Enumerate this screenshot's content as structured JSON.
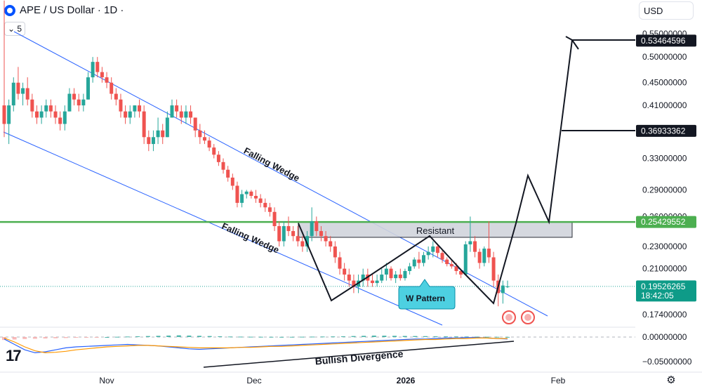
{
  "header": {
    "title": "APE / US Dollar · 1D ·",
    "currency": "USD",
    "indicator_toggle": "5"
  },
  "colors": {
    "up": "#26a69a",
    "down": "#ef5350",
    "channel": "#2962ff",
    "resistance_line": "#4caf50",
    "resistance_zone": "#d1d4dc",
    "price_tag": "#0e9b88",
    "macd": "#2962ff",
    "signal": "#ff9800"
  },
  "chart_data": {
    "type": "candlestick",
    "y_scale": "log",
    "y_ticks": [
      "0.55000000",
      "0.50000000",
      "0.45000000",
      "0.41000000",
      "0.33000000",
      "0.29000000",
      "0.26000000",
      "0.23000000",
      "0.21000000",
      "0.17400000"
    ],
    "x_ticks": [
      "Nov",
      "Dec",
      "2026",
      "Feb"
    ],
    "candles_ohlc": [
      [
        0.41,
        0.63,
        0.36,
        0.38
      ],
      [
        0.38,
        0.42,
        0.35,
        0.41
      ],
      [
        0.41,
        0.46,
        0.4,
        0.45
      ],
      [
        0.45,
        0.48,
        0.42,
        0.43
      ],
      [
        0.43,
        0.45,
        0.41,
        0.44
      ],
      [
        0.44,
        0.46,
        0.41,
        0.42
      ],
      [
        0.42,
        0.43,
        0.39,
        0.4
      ],
      [
        0.4,
        0.41,
        0.38,
        0.39
      ],
      [
        0.39,
        0.41,
        0.38,
        0.4
      ],
      [
        0.4,
        0.42,
        0.39,
        0.41
      ],
      [
        0.41,
        0.42,
        0.39,
        0.4
      ],
      [
        0.4,
        0.41,
        0.38,
        0.39
      ],
      [
        0.39,
        0.4,
        0.37,
        0.38
      ],
      [
        0.38,
        0.41,
        0.37,
        0.4
      ],
      [
        0.4,
        0.44,
        0.4,
        0.43
      ],
      [
        0.43,
        0.44,
        0.41,
        0.42
      ],
      [
        0.42,
        0.43,
        0.4,
        0.41
      ],
      [
        0.41,
        0.43,
        0.4,
        0.42
      ],
      [
        0.42,
        0.47,
        0.42,
        0.46
      ],
      [
        0.46,
        0.5,
        0.45,
        0.49
      ],
      [
        0.49,
        0.5,
        0.46,
        0.47
      ],
      [
        0.47,
        0.48,
        0.45,
        0.46
      ],
      [
        0.46,
        0.47,
        0.44,
        0.45
      ],
      [
        0.45,
        0.46,
        0.42,
        0.43
      ],
      [
        0.43,
        0.44,
        0.41,
        0.42
      ],
      [
        0.42,
        0.43,
        0.39,
        0.4
      ],
      [
        0.4,
        0.41,
        0.38,
        0.39
      ],
      [
        0.39,
        0.41,
        0.38,
        0.4
      ],
      [
        0.4,
        0.41,
        0.39,
        0.41
      ],
      [
        0.41,
        0.42,
        0.39,
        0.4
      ],
      [
        0.4,
        0.41,
        0.35,
        0.36
      ],
      [
        0.36,
        0.37,
        0.34,
        0.35
      ],
      [
        0.35,
        0.37,
        0.34,
        0.36
      ],
      [
        0.36,
        0.39,
        0.35,
        0.37
      ],
      [
        0.37,
        0.38,
        0.35,
        0.36
      ],
      [
        0.36,
        0.4,
        0.36,
        0.39
      ],
      [
        0.39,
        0.42,
        0.39,
        0.41
      ],
      [
        0.41,
        0.42,
        0.39,
        0.4
      ],
      [
        0.4,
        0.41,
        0.38,
        0.39
      ],
      [
        0.39,
        0.41,
        0.38,
        0.4
      ],
      [
        0.4,
        0.41,
        0.38,
        0.39
      ],
      [
        0.39,
        0.39,
        0.36,
        0.37
      ],
      [
        0.37,
        0.38,
        0.35,
        0.36
      ],
      [
        0.36,
        0.37,
        0.35,
        0.355
      ],
      [
        0.355,
        0.36,
        0.34,
        0.345
      ],
      [
        0.345,
        0.35,
        0.33,
        0.335
      ],
      [
        0.335,
        0.34,
        0.32,
        0.325
      ],
      [
        0.325,
        0.33,
        0.31,
        0.315
      ],
      [
        0.315,
        0.32,
        0.3,
        0.305
      ],
      [
        0.305,
        0.31,
        0.29,
        0.295
      ],
      [
        0.295,
        0.3,
        0.27,
        0.275
      ],
      [
        0.275,
        0.29,
        0.27,
        0.285
      ],
      [
        0.285,
        0.29,
        0.28,
        0.288
      ],
      [
        0.288,
        0.29,
        0.28,
        0.283
      ],
      [
        0.283,
        0.29,
        0.275,
        0.28
      ],
      [
        0.28,
        0.285,
        0.27,
        0.275
      ],
      [
        0.275,
        0.28,
        0.265,
        0.27
      ],
      [
        0.27,
        0.275,
        0.26,
        0.265
      ],
      [
        0.265,
        0.27,
        0.245,
        0.25
      ],
      [
        0.25,
        0.255,
        0.23,
        0.235
      ],
      [
        0.235,
        0.255,
        0.23,
        0.25
      ],
      [
        0.25,
        0.26,
        0.24,
        0.245
      ],
      [
        0.245,
        0.25,
        0.235,
        0.24
      ],
      [
        0.24,
        0.25,
        0.23,
        0.235
      ],
      [
        0.235,
        0.24,
        0.225,
        0.23
      ],
      [
        0.23,
        0.245,
        0.225,
        0.24
      ],
      [
        0.24,
        0.27,
        0.235,
        0.255
      ],
      [
        0.255,
        0.26,
        0.24,
        0.245
      ],
      [
        0.245,
        0.25,
        0.235,
        0.24
      ],
      [
        0.24,
        0.245,
        0.23,
        0.235
      ],
      [
        0.235,
        0.24,
        0.225,
        0.23
      ],
      [
        0.23,
        0.235,
        0.215,
        0.22
      ],
      [
        0.22,
        0.225,
        0.205,
        0.21
      ],
      [
        0.21,
        0.215,
        0.2,
        0.205
      ],
      [
        0.205,
        0.21,
        0.195,
        0.2
      ],
      [
        0.2,
        0.205,
        0.19,
        0.195
      ],
      [
        0.195,
        0.205,
        0.19,
        0.2
      ],
      [
        0.2,
        0.21,
        0.195,
        0.205
      ],
      [
        0.205,
        0.21,
        0.195,
        0.2
      ],
      [
        0.2,
        0.205,
        0.195,
        0.198
      ],
      [
        0.198,
        0.205,
        0.195,
        0.2
      ],
      [
        0.2,
        0.21,
        0.198,
        0.205
      ],
      [
        0.205,
        0.215,
        0.2,
        0.21
      ],
      [
        0.21,
        0.212,
        0.2,
        0.202
      ],
      [
        0.202,
        0.208,
        0.198,
        0.205
      ],
      [
        0.205,
        0.21,
        0.2,
        0.202
      ],
      [
        0.202,
        0.21,
        0.2,
        0.208
      ],
      [
        0.208,
        0.215,
        0.205,
        0.212
      ],
      [
        0.212,
        0.22,
        0.21,
        0.218
      ],
      [
        0.218,
        0.225,
        0.21,
        0.215
      ],
      [
        0.215,
        0.225,
        0.212,
        0.222
      ],
      [
        0.222,
        0.23,
        0.218,
        0.225
      ],
      [
        0.225,
        0.235,
        0.22,
        0.23
      ],
      [
        0.23,
        0.232,
        0.22,
        0.224
      ],
      [
        0.224,
        0.226,
        0.215,
        0.218
      ],
      [
        0.218,
        0.22,
        0.212,
        0.214
      ],
      [
        0.214,
        0.218,
        0.21,
        0.212
      ],
      [
        0.212,
        0.215,
        0.205,
        0.208
      ],
      [
        0.208,
        0.21,
        0.202,
        0.205
      ],
      [
        0.205,
        0.235,
        0.205,
        0.232
      ],
      [
        0.232,
        0.26,
        0.225,
        0.235
      ],
      [
        0.235,
        0.24,
        0.22,
        0.225
      ],
      [
        0.225,
        0.228,
        0.21,
        0.215
      ],
      [
        0.215,
        0.23,
        0.212,
        0.228
      ],
      [
        0.228,
        0.255,
        0.215,
        0.22
      ],
      [
        0.22,
        0.225,
        0.195,
        0.2
      ],
      [
        0.2,
        0.205,
        0.18,
        0.19
      ],
      [
        0.19,
        0.2,
        0.182,
        0.196
      ],
      [
        0.195,
        0.2,
        0.194,
        0.19526
      ]
    ],
    "price_labels": [
      {
        "value": 0.53464596,
        "text": "0.53464596",
        "style": "dark"
      },
      {
        "value": 0.36933362,
        "text": "0.36933362",
        "style": "dark"
      },
      {
        "value": 0.25429552,
        "text": "0.25429552",
        "style": "green"
      },
      {
        "value": 0.19526265,
        "text": "0.19526265",
        "sub": "18:42:05",
        "style": "teal"
      }
    ],
    "annotations": {
      "wedge_upper": "Falling Wedge",
      "wedge_lower": "Falling Wedge",
      "resistance": "Resistant",
      "w_pattern": "W Pattern",
      "divergence": "Bullish Divergence"
    },
    "macd": {
      "y_ticks": [
        "0.00000000",
        "−0.05000000"
      ],
      "ylim": [
        -0.06,
        0.01
      ],
      "histogram": [
        -0.006,
        -0.005,
        -0.004,
        -0.0035,
        -0.003,
        -0.0025,
        -0.002,
        -0.0015,
        -0.001,
        -0.0005,
        0.0,
        0.0005,
        0.001,
        0.0015,
        0.002,
        0.0025,
        0.003,
        0.0035,
        0.003,
        0.0025,
        0.002,
        0.0015,
        0.001,
        0.0008,
        0.0006,
        0.0005,
        0.0004,
        0.0003,
        0.0004,
        0.0006,
        0.0008,
        0.001,
        0.0012,
        0.0015,
        0.002,
        0.0025,
        0.003,
        0.0028,
        0.0025,
        0.0022,
        0.002,
        0.0018,
        0.0016,
        0.0014,
        0.0012,
        0.001,
        0.0008,
        0.0006,
        0.0004,
        0.0002
      ],
      "macd_line": [
        -0.004,
        -0.015,
        -0.026,
        -0.032,
        -0.03,
        -0.026,
        -0.022,
        -0.02,
        -0.019,
        -0.018,
        -0.017,
        -0.016,
        -0.015,
        -0.016,
        -0.017,
        -0.018,
        -0.02,
        -0.022,
        -0.024,
        -0.025,
        -0.024,
        -0.023,
        -0.022,
        -0.021,
        -0.02,
        -0.019,
        -0.018,
        -0.017,
        -0.016,
        -0.015,
        -0.014,
        -0.013,
        -0.012,
        -0.011,
        -0.01,
        -0.009,
        -0.008,
        -0.007,
        -0.006,
        -0.005,
        -0.004,
        -0.004,
        -0.003,
        -0.002,
        -0.002,
        -0.001,
        -0.001,
        -0.002,
        -0.003,
        -0.004
      ],
      "signal_line": [
        -0.002,
        -0.01,
        -0.02,
        -0.028,
        -0.032,
        -0.031,
        -0.029,
        -0.026,
        -0.024,
        -0.022,
        -0.02,
        -0.019,
        -0.018,
        -0.017,
        -0.017,
        -0.018,
        -0.019,
        -0.02,
        -0.021,
        -0.022,
        -0.022,
        -0.022,
        -0.022,
        -0.021,
        -0.021,
        -0.02,
        -0.019,
        -0.019,
        -0.018,
        -0.017,
        -0.016,
        -0.015,
        -0.014,
        -0.013,
        -0.012,
        -0.011,
        -0.01,
        -0.009,
        -0.008,
        -0.007,
        -0.006,
        -0.005,
        -0.005,
        -0.004,
        -0.003,
        -0.003,
        -0.002,
        -0.002,
        -0.003,
        -0.003
      ]
    }
  }
}
